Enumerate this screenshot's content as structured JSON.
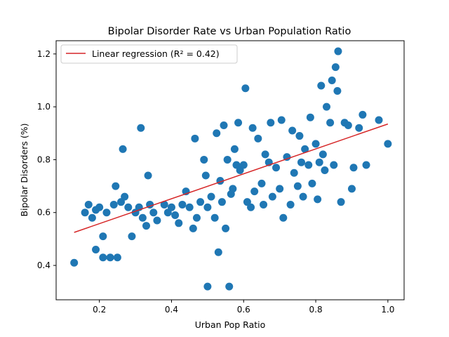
{
  "chart_data": {
    "type": "scatter",
    "title": "Bipolar Disorder Rate vs Urban Population Ratio",
    "xlabel": "Urban Pop Ratio",
    "ylabel": "Bipolar Disorders (%)",
    "xlim": [
      0.08,
      1.045
    ],
    "ylim": [
      0.27,
      1.25
    ],
    "xticks": [
      0.2,
      0.4,
      0.6,
      0.8,
      1.0
    ],
    "xtick_labels": [
      "0.2",
      "0.4",
      "0.6",
      "0.8",
      "1.0"
    ],
    "yticks": [
      0.4,
      0.6,
      0.8,
      1.0,
      1.2
    ],
    "ytick_labels": [
      "0.4",
      "0.6",
      "0.8",
      "1.0",
      "1.2"
    ],
    "grid": false,
    "legend_position": "top-left",
    "point_color": "#1f77b4",
    "line_color": "#d62728",
    "series": [
      {
        "type": "scatter",
        "points": [
          [
            0.13,
            0.41
          ],
          [
            0.16,
            0.6
          ],
          [
            0.17,
            0.63
          ],
          [
            0.18,
            0.58
          ],
          [
            0.19,
            0.61
          ],
          [
            0.19,
            0.46
          ],
          [
            0.2,
            0.62
          ],
          [
            0.21,
            0.43
          ],
          [
            0.21,
            0.51
          ],
          [
            0.22,
            0.6
          ],
          [
            0.23,
            0.43
          ],
          [
            0.24,
            0.63
          ],
          [
            0.245,
            0.7
          ],
          [
            0.25,
            0.43
          ],
          [
            0.26,
            0.64
          ],
          [
            0.265,
            0.84
          ],
          [
            0.27,
            0.66
          ],
          [
            0.28,
            0.62
          ],
          [
            0.29,
            0.51
          ],
          [
            0.3,
            0.6
          ],
          [
            0.31,
            0.62
          ],
          [
            0.315,
            0.92
          ],
          [
            0.32,
            0.58
          ],
          [
            0.33,
            0.55
          ],
          [
            0.335,
            0.74
          ],
          [
            0.34,
            0.63
          ],
          [
            0.35,
            0.6
          ],
          [
            0.36,
            0.57
          ],
          [
            0.38,
            0.63
          ],
          [
            0.39,
            0.6
          ],
          [
            0.4,
            0.62
          ],
          [
            0.41,
            0.59
          ],
          [
            0.42,
            0.56
          ],
          [
            0.43,
            0.63
          ],
          [
            0.44,
            0.68
          ],
          [
            0.45,
            0.62
          ],
          [
            0.46,
            0.54
          ],
          [
            0.465,
            0.88
          ],
          [
            0.47,
            0.58
          ],
          [
            0.48,
            0.64
          ],
          [
            0.49,
            0.8
          ],
          [
            0.495,
            0.74
          ],
          [
            0.5,
            0.62
          ],
          [
            0.5,
            0.32
          ],
          [
            0.51,
            0.66
          ],
          [
            0.52,
            0.58
          ],
          [
            0.525,
            0.9
          ],
          [
            0.53,
            0.45
          ],
          [
            0.535,
            0.72
          ],
          [
            0.54,
            0.64
          ],
          [
            0.545,
            0.93
          ],
          [
            0.55,
            0.54
          ],
          [
            0.555,
            0.8
          ],
          [
            0.56,
            0.32
          ],
          [
            0.565,
            0.67
          ],
          [
            0.57,
            0.69
          ],
          [
            0.575,
            0.84
          ],
          [
            0.58,
            0.78
          ],
          [
            0.585,
            0.94
          ],
          [
            0.59,
            0.76
          ],
          [
            0.6,
            0.78
          ],
          [
            0.605,
            1.07
          ],
          [
            0.61,
            0.64
          ],
          [
            0.62,
            0.62
          ],
          [
            0.625,
            0.92
          ],
          [
            0.63,
            0.68
          ],
          [
            0.64,
            0.88
          ],
          [
            0.65,
            0.71
          ],
          [
            0.655,
            0.63
          ],
          [
            0.66,
            0.82
          ],
          [
            0.67,
            0.79
          ],
          [
            0.675,
            0.94
          ],
          [
            0.68,
            0.66
          ],
          [
            0.69,
            0.77
          ],
          [
            0.7,
            0.69
          ],
          [
            0.705,
            0.95
          ],
          [
            0.71,
            0.58
          ],
          [
            0.72,
            0.81
          ],
          [
            0.73,
            0.63
          ],
          [
            0.735,
            0.91
          ],
          [
            0.74,
            0.75
          ],
          [
            0.75,
            0.7
          ],
          [
            0.755,
            0.89
          ],
          [
            0.76,
            0.79
          ],
          [
            0.765,
            0.66
          ],
          [
            0.77,
            0.84
          ],
          [
            0.78,
            0.78
          ],
          [
            0.785,
            0.96
          ],
          [
            0.79,
            0.71
          ],
          [
            0.8,
            0.86
          ],
          [
            0.805,
            0.65
          ],
          [
            0.81,
            0.79
          ],
          [
            0.815,
            1.08
          ],
          [
            0.82,
            0.82
          ],
          [
            0.825,
            0.76
          ],
          [
            0.83,
            1.0
          ],
          [
            0.84,
            0.94
          ],
          [
            0.845,
            1.1
          ],
          [
            0.85,
            0.78
          ],
          [
            0.855,
            1.15
          ],
          [
            0.86,
            1.06
          ],
          [
            0.862,
            1.21
          ],
          [
            0.87,
            0.64
          ],
          [
            0.88,
            0.94
          ],
          [
            0.89,
            0.93
          ],
          [
            0.9,
            0.69
          ],
          [
            0.905,
            0.77
          ],
          [
            0.92,
            0.92
          ],
          [
            0.93,
            0.97
          ],
          [
            0.94,
            0.78
          ],
          [
            0.975,
            0.95
          ],
          [
            1.0,
            0.86
          ]
        ]
      },
      {
        "type": "line",
        "name": "Linear regression (R² = 0.42)",
        "points": [
          [
            0.13,
            0.525
          ],
          [
            1.0,
            0.935
          ]
        ]
      }
    ]
  }
}
